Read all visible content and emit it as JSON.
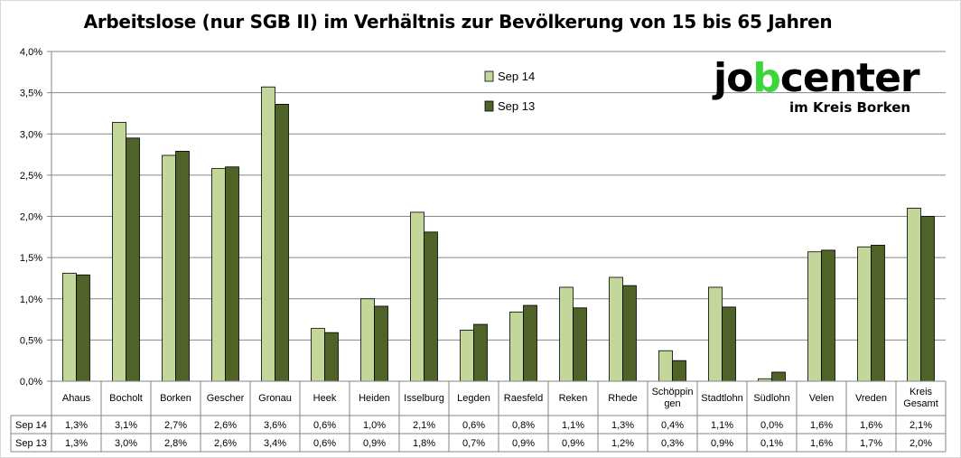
{
  "chart_data": {
    "type": "bar",
    "title": "Arbeitslose (nur SGB II) im Verhältnis zur Bevölkerung von 15 bis 65 Jahren",
    "categories": [
      "Ahaus",
      "Bocholt",
      "Borken",
      "Gescher",
      "Gronau",
      "Heek",
      "Heiden",
      "Isselburg",
      "Legden",
      "Raesfeld",
      "Reken",
      "Rhede",
      "Schöppin gen",
      "Stadtlohn",
      "Südlohn",
      "Velen",
      "Vreden",
      "Kreis Gesamt"
    ],
    "category_lines": [
      [
        "Ahaus"
      ],
      [
        "Bocholt"
      ],
      [
        "Borken"
      ],
      [
        "Gescher"
      ],
      [
        "Gronau"
      ],
      [
        "Heek"
      ],
      [
        "Heiden"
      ],
      [
        "Isselburg"
      ],
      [
        "Legden"
      ],
      [
        "Raesfeld"
      ],
      [
        "Reken"
      ],
      [
        "Rhede"
      ],
      [
        "Schöppin",
        "gen"
      ],
      [
        "Stadtlohn"
      ],
      [
        "Südlohn"
      ],
      [
        "Velen"
      ],
      [
        "Vreden"
      ],
      [
        "Kreis",
        "Gesamt"
      ]
    ],
    "series": [
      {
        "name": "Sep 14",
        "color": "#c4d79b",
        "values": [
          1.31,
          3.14,
          2.74,
          2.58,
          3.57,
          0.64,
          1.0,
          2.05,
          0.62,
          0.84,
          1.14,
          1.26,
          0.37,
          1.14,
          0.03,
          1.57,
          1.63,
          2.1
        ],
        "labels": [
          "1,3%",
          "3,1%",
          "2,7%",
          "2,6%",
          "3,6%",
          "0,6%",
          "1,0%",
          "2,1%",
          "0,6%",
          "0,8%",
          "1,1%",
          "1,3%",
          "0,4%",
          "1,1%",
          "0,0%",
          "1,6%",
          "1,6%",
          "2,1%"
        ]
      },
      {
        "name": "Sep 13",
        "color": "#4f6228",
        "values": [
          1.29,
          2.95,
          2.79,
          2.6,
          3.36,
          0.59,
          0.91,
          1.81,
          0.69,
          0.92,
          0.89,
          1.16,
          0.25,
          0.9,
          0.11,
          1.59,
          1.65,
          2.0
        ],
        "labels": [
          "1,3%",
          "3,0%",
          "2,8%",
          "2,6%",
          "3,4%",
          "0,6%",
          "0,9%",
          "1,8%",
          "0,7%",
          "0,9%",
          "0,9%",
          "1,2%",
          "0,3%",
          "0,9%",
          "0,1%",
          "1,6%",
          "1,7%",
          "2,0%"
        ]
      }
    ],
    "ylim": [
      0,
      4.0
    ],
    "yticks": [
      0,
      0.5,
      1.0,
      1.5,
      2.0,
      2.5,
      3.0,
      3.5,
      4.0
    ],
    "ytick_labels": [
      "0,0%",
      "0,5%",
      "1,0%",
      "1,5%",
      "2,0%",
      "2,5%",
      "3,0%",
      "3,5%",
      "4,0%"
    ],
    "grid": true,
    "legend_position": "top-center",
    "data_table": true
  },
  "logo": {
    "word_before": "jo",
    "word_accent": "b",
    "word_after": "center",
    "subtitle": "im Kreis Borken",
    "accent_color": "#3ad63a"
  }
}
